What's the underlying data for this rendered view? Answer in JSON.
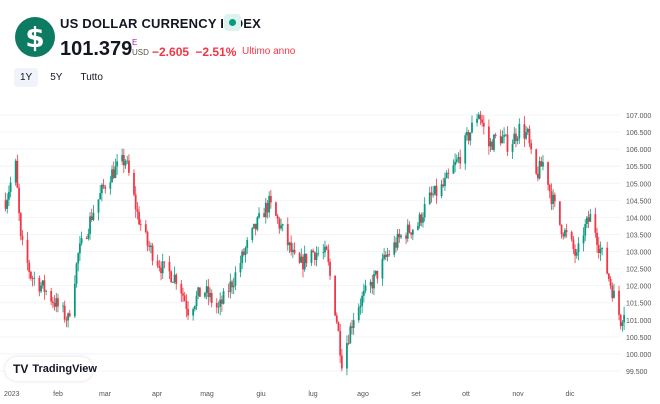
{
  "header": {
    "icon": "dollar-icon",
    "title": "US DOLLAR CURRENCY INDEX",
    "status": "market-open-dot",
    "price": "101.379",
    "currency_flag": "E",
    "currency": "USD",
    "change": "−2.605",
    "change_pct": "−2.51%",
    "period": "Ultimo anno"
  },
  "ranges": [
    {
      "label": "1Y",
      "active": true
    },
    {
      "label": "5Y",
      "active": false
    },
    {
      "label": "Tutto",
      "active": false
    }
  ],
  "branding": "TradingView",
  "colors": {
    "up": "#089981",
    "down": "#f23645",
    "accent": "#0d7a62"
  },
  "chart_data": {
    "type": "candlestick",
    "x_ticks": [
      "2023",
      "feb",
      "mar",
      "apr",
      "mag",
      "giu",
      "lug",
      "ago",
      "set",
      "ott",
      "nov",
      "dic"
    ],
    "y_ticks": [
      "107.000",
      "106.500",
      "106.000",
      "105.500",
      "105.000",
      "104.500",
      "104.000",
      "103.500",
      "103.000",
      "102.500",
      "102.000",
      "101.500",
      "101.000",
      "100.500",
      "100.000",
      "99.500"
    ],
    "ylim": [
      99.4,
      107.3
    ],
    "grid": true,
    "approx_closes": [
      [
        "2022-12-27",
        104.5
      ],
      [
        "2023-01-02",
        105.5
      ],
      [
        "2023-01-05",
        103.3
      ],
      [
        "2023-01-11",
        102.3
      ],
      [
        "2023-01-19",
        101.9
      ],
      [
        "2023-02-02",
        101.0
      ],
      [
        "2023-02-08",
        102.9
      ],
      [
        "2023-02-17",
        104.2
      ],
      [
        "2023-02-26",
        105.2
      ],
      [
        "2023-03-08",
        105.7
      ],
      [
        "2023-03-15",
        104.1
      ],
      [
        "2023-03-21",
        103.2
      ],
      [
        "2023-03-30",
        102.5
      ],
      [
        "2023-04-08",
        102.2
      ],
      [
        "2023-04-14",
        101.3
      ],
      [
        "2023-04-23",
        101.9
      ],
      [
        "2023-05-02",
        101.3
      ],
      [
        "2023-05-11",
        102.2
      ],
      [
        "2023-05-20",
        103.3
      ],
      [
        "2023-05-29",
        104.2
      ],
      [
        "2023-06-01",
        104.4
      ],
      [
        "2023-06-09",
        103.6
      ],
      [
        "2023-06-18",
        102.5
      ],
      [
        "2023-06-26",
        103.0
      ],
      [
        "2023-07-05",
        102.9
      ],
      [
        "2023-07-11",
        101.0
      ],
      [
        "2023-07-14",
        99.8
      ],
      [
        "2023-07-22",
        101.3
      ],
      [
        "2023-07-31",
        102.0
      ],
      [
        "2023-08-10",
        102.9
      ],
      [
        "2023-08-19",
        103.5
      ],
      [
        "2023-08-28",
        103.8
      ],
      [
        "2023-09-03",
        104.5
      ],
      [
        "2023-09-12",
        104.9
      ],
      [
        "2023-09-21",
        105.7
      ],
      [
        "2023-09-27",
        106.4
      ],
      [
        "2023-10-03",
        107.1
      ],
      [
        "2023-10-09",
        106.1
      ],
      [
        "2023-10-15",
        106.4
      ],
      [
        "2023-10-21",
        106.1
      ],
      [
        "2023-10-27",
        106.6
      ],
      [
        "2023-11-01",
        106.4
      ],
      [
        "2023-11-05",
        105.1
      ],
      [
        "2023-11-11",
        105.7
      ],
      [
        "2023-11-14",
        104.8
      ],
      [
        "2023-11-20",
        103.8
      ],
      [
        "2023-11-26",
        103.3
      ],
      [
        "2023-11-30",
        102.8
      ],
      [
        "2023-12-04",
        103.6
      ],
      [
        "2023-12-09",
        104.1
      ],
      [
        "2023-12-13",
        103.2
      ],
      [
        "2023-12-17",
        102.6
      ],
      [
        "2023-12-22",
        101.7
      ],
      [
        "2023-12-26",
        101.0
      ],
      [
        "2023-12-28",
        101.3
      ]
    ]
  }
}
